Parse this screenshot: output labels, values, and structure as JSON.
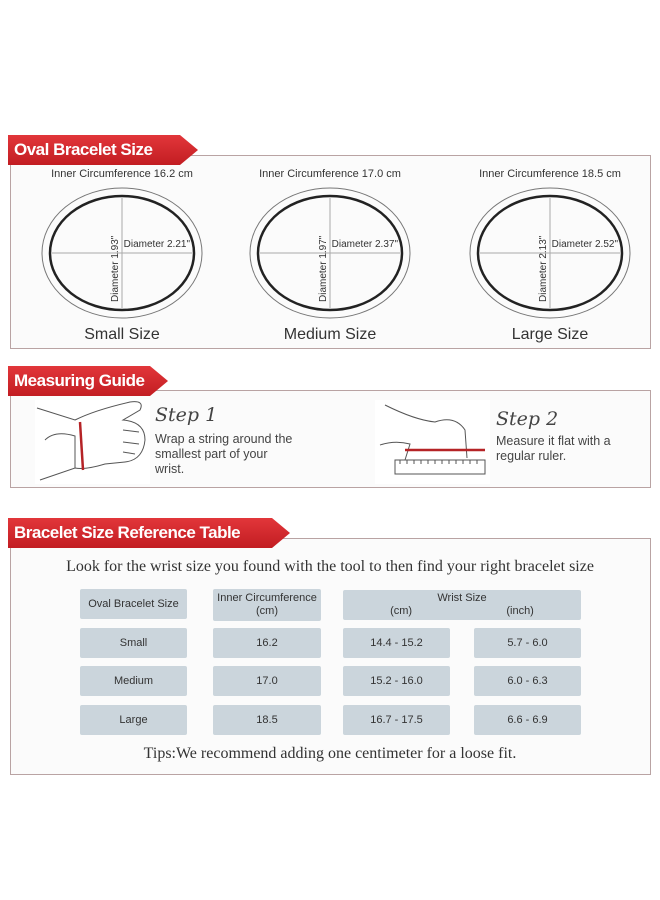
{
  "sections": {
    "oval": {
      "title": "Oval Bracelet Size"
    },
    "guide": {
      "title": "Measuring Guide"
    },
    "table": {
      "title": "Bracelet Size Reference Table"
    }
  },
  "accent_color": "#d12a2e",
  "bracelets": [
    {
      "circumference": "Inner Circumference 16.2 cm",
      "width": "Diameter 2.21\"",
      "height": "Diameter 1.93\"",
      "name": "Small Size"
    },
    {
      "circumference": "Inner Circumference 17.0 cm",
      "width": "Diameter 2.37\"",
      "height": "Diameter 1.97\"",
      "name": "Medium Size"
    },
    {
      "circumference": "Inner Circumference 18.5 cm",
      "width": "Diameter 2.52\"",
      "height": "Diameter 2.13\"",
      "name": "Large Size"
    }
  ],
  "steps": [
    {
      "title": "Step 1",
      "text": "Wrap a string around the smallest part of your wrist.",
      "icon": "wrist-string-illustration"
    },
    {
      "title": "Step 2",
      "text": "Measure it flat with a regular ruler.",
      "icon": "ruler-illustration"
    }
  ],
  "intro": "Look for the wrist size you found with the tool to then find your right bracelet size",
  "table": {
    "headers": {
      "size": "Oval Bracelet Size",
      "circ": "Inner Circumference",
      "circ_unit": "(cm)",
      "wrist": "Wrist Size",
      "wrist_cm": "(cm)",
      "wrist_inch": "(inch)"
    },
    "rows": [
      {
        "size": "Small",
        "circ": "16.2",
        "cm": "14.4 - 15.2",
        "inch": "5.7 - 6.0"
      },
      {
        "size": "Medium",
        "circ": "17.0",
        "cm": "15.2 - 16.0",
        "inch": "6.0 - 6.3"
      },
      {
        "size": "Large",
        "circ": "18.5",
        "cm": "16.7 - 17.5",
        "inch": "6.6 - 6.9"
      }
    ]
  },
  "tips": "Tips:We recommend adding one centimeter for a loose fit."
}
